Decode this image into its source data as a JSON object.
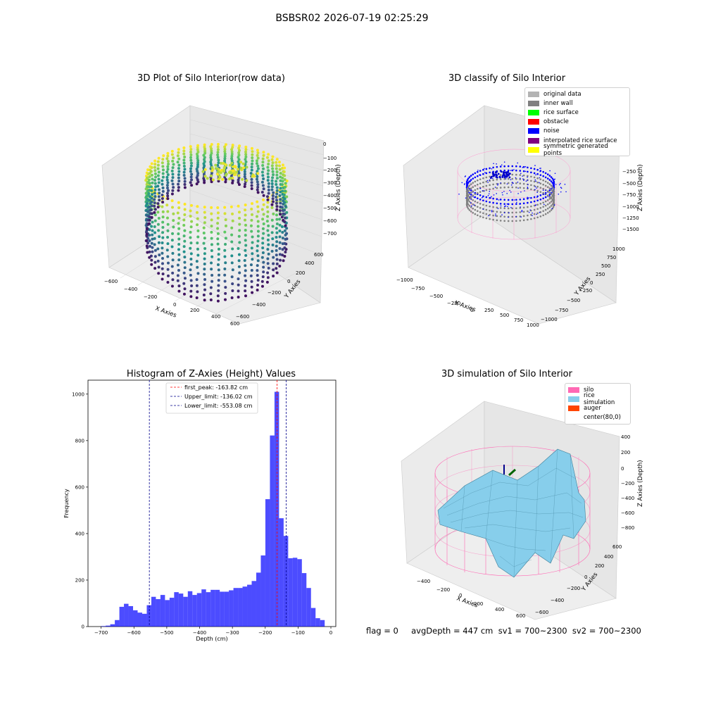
{
  "suptitle": "BSBSR02 2026-07-19 02:25:29",
  "panels": {
    "raw": {
      "title": "3D Plot of Silo Interior(row data)",
      "xlabel": "X Axies",
      "ylabel": "Y Axies",
      "zlabel": "Z Axies (Depth)",
      "xticks": [
        "−600",
        "−400",
        "−200",
        "0",
        "200",
        "400",
        "600"
      ],
      "yticks": [
        "−600",
        "−400",
        "−200",
        "0",
        "200",
        "400",
        "600"
      ],
      "zticks": [
        "0",
        "−100",
        "−200",
        "−300",
        "−400",
        "−500",
        "−600",
        "−700"
      ]
    },
    "classify": {
      "title": "3D classify of Silo Interior",
      "xlabel": "X Axies",
      "ylabel": "Y Axies",
      "zlabel": "Z Axies (Depth)",
      "xticks": [
        "−1000",
        "−750",
        "−500",
        "−250",
        "0",
        "250",
        "500",
        "750",
        "1000"
      ],
      "yticks": [
        "−1000",
        "−750",
        "−500",
        "−250",
        "0",
        "250",
        "500",
        "750",
        "1000"
      ],
      "zticks": [
        "0",
        "−250",
        "−500",
        "−750",
        "−1000",
        "−1250",
        "−1500"
      ],
      "legend": [
        {
          "label": "original data",
          "color": "#b3b3b3"
        },
        {
          "label": "inner wall",
          "color": "#808080"
        },
        {
          "label": "rice surface",
          "color": "#00ff00"
        },
        {
          "label": "obstacle",
          "color": "#ff0000"
        },
        {
          "label": "noise",
          "color": "#0000ff"
        },
        {
          "label": "interpolated rice surface",
          "color": "#800080"
        },
        {
          "label": "symmetric generated points",
          "color": "#ffff00"
        }
      ]
    },
    "simulation": {
      "title": "3D simulation of Silo Interior",
      "xlabel": "X Axies",
      "ylabel": "Y Axies",
      "zlabel": "Z Axies (Depth)",
      "xticks": [
        "−400",
        "−200",
        "0",
        "200",
        "400",
        "600"
      ],
      "yticks": [
        "−600",
        "−400",
        "−200",
        "0",
        "200",
        "400",
        "600"
      ],
      "zticks": [
        "400",
        "200",
        "0",
        "−200",
        "−400",
        "−600",
        "−800"
      ],
      "legend": [
        {
          "label": "silo",
          "color": "#ff69b4"
        },
        {
          "label": "rice simulation",
          "color": "#87ceeb"
        },
        {
          "label": "auger",
          "color": "#ff4500"
        },
        {
          "label": "center(80,0)",
          "color": "#ffffff"
        }
      ]
    }
  },
  "status_text": "flag = 0     avgDepth = 447 cm  sv1 = 700~2300  sv2 = 700~2300",
  "chart_data": [
    {
      "type": "bar",
      "title": "Histogram of Z-Axies (Height) Values",
      "xlabel": "Depth (cm)",
      "ylabel": "Frequency",
      "xlim": [
        -740,
        15
      ],
      "ylim": [
        0,
        1060
      ],
      "xticks": [
        -700,
        -600,
        -500,
        -400,
        -300,
        -200,
        -100,
        0
      ],
      "yticks": [
        0,
        200,
        400,
        600,
        800,
        1000
      ],
      "bar_color": "#0000ff",
      "bin_width": 13.9,
      "bins": [
        {
          "x": -700.0,
          "count": 2
        },
        {
          "x": -686.1,
          "count": 4
        },
        {
          "x": -672.2,
          "count": 10
        },
        {
          "x": -658.3,
          "count": 28
        },
        {
          "x": -644.4,
          "count": 85
        },
        {
          "x": -630.5,
          "count": 98
        },
        {
          "x": -616.6,
          "count": 88
        },
        {
          "x": -602.7,
          "count": 70
        },
        {
          "x": -588.8,
          "count": 60
        },
        {
          "x": -574.9,
          "count": 55
        },
        {
          "x": -561.0,
          "count": 92
        },
        {
          "x": -547.1,
          "count": 128
        },
        {
          "x": -533.2,
          "count": 118
        },
        {
          "x": -519.3,
          "count": 136
        },
        {
          "x": -505.4,
          "count": 114
        },
        {
          "x": -491.5,
          "count": 124
        },
        {
          "x": -477.6,
          "count": 148
        },
        {
          "x": -463.7,
          "count": 142
        },
        {
          "x": -449.8,
          "count": 128
        },
        {
          "x": -435.9,
          "count": 152
        },
        {
          "x": -422.0,
          "count": 136
        },
        {
          "x": -408.1,
          "count": 144
        },
        {
          "x": -394.2,
          "count": 160
        },
        {
          "x": -380.3,
          "count": 148
        },
        {
          "x": -366.4,
          "count": 158
        },
        {
          "x": -352.5,
          "count": 158
        },
        {
          "x": -338.6,
          "count": 150
        },
        {
          "x": -324.7,
          "count": 150
        },
        {
          "x": -310.8,
          "count": 156
        },
        {
          "x": -296.9,
          "count": 166
        },
        {
          "x": -283.0,
          "count": 166
        },
        {
          "x": -269.1,
          "count": 172
        },
        {
          "x": -255.2,
          "count": 180
        },
        {
          "x": -241.3,
          "count": 196
        },
        {
          "x": -227.4,
          "count": 232
        },
        {
          "x": -213.5,
          "count": 306
        },
        {
          "x": -199.6,
          "count": 548
        },
        {
          "x": -185.7,
          "count": 822
        },
        {
          "x": -171.8,
          "count": 1010
        },
        {
          "x": -157.9,
          "count": 466
        },
        {
          "x": -144.0,
          "count": 390
        },
        {
          "x": -130.1,
          "count": 294
        },
        {
          "x": -116.2,
          "count": 296
        },
        {
          "x": -102.3,
          "count": 290
        },
        {
          "x": -88.4,
          "count": 230
        },
        {
          "x": -74.5,
          "count": 166
        },
        {
          "x": -60.6,
          "count": 80
        },
        {
          "x": -46.7,
          "count": 36
        },
        {
          "x": -32.8,
          "count": 28
        }
      ],
      "lines": [
        {
          "label": "first_peak: -163.82 cm",
          "x": -163.82,
          "color": "#ff0000"
        },
        {
          "label": "Upper_limit: -136.02 cm",
          "x": -136.02,
          "color": "#00008b"
        },
        {
          "label": "Lower_limit: -553.08 cm",
          "x": -553.08,
          "color": "#00008b"
        }
      ],
      "legend_position": "top-center"
    }
  ]
}
